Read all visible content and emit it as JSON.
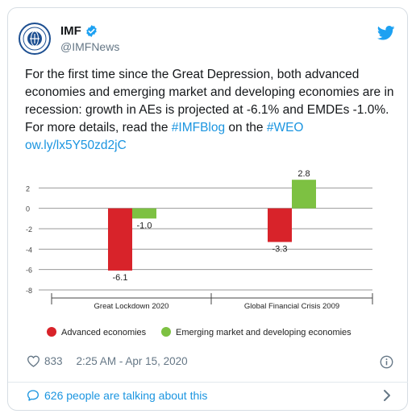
{
  "tweet": {
    "display_name": "IMF",
    "handle": "@IMFNews",
    "text_before": "For the first time since the Great Depression, both advanced economies and emerging market and developing economies are in recession: growth in AEs is projected at -6.1% and EMDEs -1.0%. For more details, read the ",
    "hashtag1": "#IMFBlog",
    "text_middle": " on the ",
    "hashtag2": "#WEO",
    "link": "ow.ly/lx5Y50zd2jC",
    "likes": "833",
    "timestamp": "2:25 AM - Apr 15, 2020",
    "talking": "626 people are talking about this"
  },
  "icons": {
    "verified": "verified-badge-icon",
    "twitter": "twitter-bird-icon",
    "heart": "heart-icon",
    "info": "info-icon",
    "comment": "comment-bubble-icon",
    "chevron": "chevron-right-icon"
  },
  "colors": {
    "advanced": "#d8232a",
    "emerging": "#7dc142",
    "link": "#1b95e0"
  },
  "chart_data": {
    "type": "bar",
    "categories": [
      "Great Lockdown 2020",
      "Global Financial Crisis 2009"
    ],
    "series": [
      {
        "name": "Advanced economies",
        "values": [
          -6.1,
          -3.3
        ]
      },
      {
        "name": "Emerging market and developing economies",
        "values": [
          -1.0,
          2.8
        ]
      }
    ],
    "value_labels": [
      [
        "-6.1",
        "-1.0"
      ],
      [
        "-3.3",
        "2.8"
      ]
    ],
    "yticks": [
      2,
      0,
      -2,
      -4,
      -6,
      -8
    ],
    "ylim": [
      -8,
      4
    ],
    "grid": true,
    "legend_position": "bottom"
  }
}
